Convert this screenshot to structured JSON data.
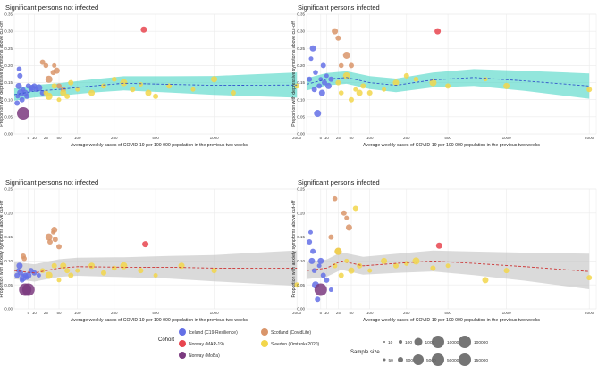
{
  "chart_data": [
    {
      "type": "scatter",
      "title": "Significant persons not infected",
      "xlabel": "Average weekly cases of COVID-19 per 100 000 population in the previous two weeks",
      "ylabel": "Proportion with depressive symptoms above cut-off",
      "xscale": "sqrt",
      "xticks": [
        5,
        10,
        25,
        50,
        100,
        250,
        500,
        1000,
        2000
      ],
      "yticks": [
        0,
        0.05,
        0.1,
        0.15,
        0.2,
        0.25,
        0.3,
        0.35
      ],
      "ytick_labels": [
        "0.00",
        "0.05",
        "0.10",
        "0.15",
        "0.20",
        "0.25",
        "0.30",
        "0.35"
      ],
      "ylim": [
        0,
        0.35
      ],
      "xlim": [
        0,
        2100
      ],
      "grid": true,
      "series": [
        {
          "name": "Iceland (C19-Resilience)",
          "color": "#6470e6",
          "points": [
            [
              0.2,
              0.09
            ],
            [
              0.3,
              0.11
            ],
            [
              0.5,
              0.14
            ],
            [
              0.8,
              0.17
            ],
            [
              0.6,
              0.19
            ],
            [
              1,
              0.12
            ],
            [
              1.5,
              0.1
            ],
            [
              2,
              0.13
            ],
            [
              3,
              0.12
            ],
            [
              4,
              0.11
            ],
            [
              5,
              0.14
            ],
            [
              7,
              0.13
            ],
            [
              8,
              0.135
            ],
            [
              10,
              0.14
            ],
            [
              12,
              0.13
            ],
            [
              15,
              0.135
            ],
            [
              20,
              0.12
            ]
          ]
        },
        {
          "name": "Norway (MAP-19)",
          "color": "#e8454f",
          "points": [
            [
              420,
              0.305
            ]
          ]
        },
        {
          "name": "Norway (MoBa)",
          "color": "#7b3a7f",
          "points": [
            [
              2,
              0.06
            ]
          ]
        },
        {
          "name": "Scotland (CovidLife)",
          "color": "#d9956a",
          "points": [
            [
              20,
              0.21
            ],
            [
              25,
              0.2
            ],
            [
              30,
              0.16
            ],
            [
              38,
              0.18
            ],
            [
              40,
              0.2
            ],
            [
              45,
              0.185
            ],
            [
              50,
              0.14
            ],
            [
              60,
              0.13
            ]
          ]
        },
        {
          "name": "Sweden (Omtanke2020)",
          "color": "#f2d64b",
          "points": [
            [
              25,
              0.12
            ],
            [
              30,
              0.11
            ],
            [
              40,
              0.14
            ],
            [
              50,
              0.1
            ],
            [
              60,
              0.12
            ],
            [
              70,
              0.11
            ],
            [
              80,
              0.15
            ],
            [
              100,
              0.13
            ],
            [
              150,
              0.12
            ],
            [
              200,
              0.14
            ],
            [
              250,
              0.16
            ],
            [
              300,
              0.15
            ],
            [
              350,
              0.13
            ],
            [
              400,
              0.145
            ],
            [
              450,
              0.12
            ],
            [
              500,
              0.11
            ],
            [
              600,
              0.14
            ],
            [
              800,
              0.13
            ],
            [
              1000,
              0.16
            ],
            [
              1200,
              0.12
            ],
            [
              2000,
              0.14
            ]
          ]
        }
      ],
      "fit": [
        [
          0,
          0.115
        ],
        [
          10,
          0.125
        ],
        [
          50,
          0.13
        ],
        [
          150,
          0.14
        ],
        [
          300,
          0.148
        ],
        [
          600,
          0.145
        ],
        [
          1000,
          0.142
        ],
        [
          2000,
          0.143
        ]
      ],
      "band_color": "#49d6c4"
    },
    {
      "type": "scatter",
      "title": "Significant persons infected",
      "xlabel": "Average weekly cases of COVID-19 per 100 000 population in the previous two weeks",
      "ylabel": "Proportion with depressive symptoms above cut-off",
      "xscale": "sqrt",
      "xticks": [
        5,
        10,
        25,
        50,
        100,
        250,
        500,
        1000,
        2000
      ],
      "yticks": [
        0,
        0.05,
        0.1,
        0.15,
        0.2,
        0.25,
        0.3,
        0.35
      ],
      "ytick_labels": [
        "0.00",
        "0.05",
        "0.10",
        "0.15",
        "0.20",
        "0.25",
        "0.30",
        "0.35"
      ],
      "ylim": [
        0,
        0.35
      ],
      "xlim": [
        0,
        2100
      ],
      "grid": true,
      "series": [
        {
          "name": "Iceland (C19-Resilience)",
          "color": "#6470e6",
          "points": [
            [
              0.2,
              0.16
            ],
            [
              0.5,
              0.22
            ],
            [
              1,
              0.25
            ],
            [
              1.5,
              0.13
            ],
            [
              2,
              0.18
            ],
            [
              3,
              0.06
            ],
            [
              4,
              0.14
            ],
            [
              5,
              0.16
            ],
            [
              6,
              0.12
            ],
            [
              7,
              0.2
            ],
            [
              8,
              0.15
            ],
            [
              10,
              0.17
            ],
            [
              12,
              0.14
            ],
            [
              15,
              0.16
            ]
          ]
        },
        {
          "name": "Norway (MAP-19)",
          "color": "#e8454f",
          "points": [
            [
              430,
              0.3
            ]
          ]
        },
        {
          "name": "Scotland (CovidLife)",
          "color": "#d9956a",
          "points": [
            [
              20,
              0.3
            ],
            [
              25,
              0.28
            ],
            [
              30,
              0.2
            ],
            [
              40,
              0.23
            ],
            [
              50,
              0.2
            ]
          ]
        },
        {
          "name": "Sweden (Omtanke2020)",
          "color": "#f2d64b",
          "points": [
            [
              25,
              0.15
            ],
            [
              30,
              0.12
            ],
            [
              40,
              0.17
            ],
            [
              50,
              0.1
            ],
            [
              60,
              0.13
            ],
            [
              70,
              0.12
            ],
            [
              80,
              0.14
            ],
            [
              100,
              0.12
            ],
            [
              150,
              0.13
            ],
            [
              200,
              0.15
            ],
            [
              250,
              0.17
            ],
            [
              300,
              0.16
            ],
            [
              400,
              0.15
            ],
            [
              500,
              0.14
            ],
            [
              800,
              0.16
            ],
            [
              1000,
              0.14
            ],
            [
              2000,
              0.13
            ]
          ]
        }
      ],
      "fit": [
        [
          0,
          0.145
        ],
        [
          10,
          0.16
        ],
        [
          40,
          0.165
        ],
        [
          100,
          0.15
        ],
        [
          200,
          0.142
        ],
        [
          400,
          0.158
        ],
        [
          700,
          0.165
        ],
        [
          1200,
          0.155
        ],
        [
          2000,
          0.14
        ]
      ],
      "band_color": "#49d6c4"
    },
    {
      "type": "scatter",
      "title": "Significant persons not infected",
      "xlabel": "Average weekly cases of COVID-19 per 100 000 population in the previous two weeks",
      "ylabel": "Proportion with anxiety symptoms above cut-off",
      "xscale": "sqrt",
      "xticks": [
        5,
        10,
        25,
        50,
        100,
        250,
        500,
        1000,
        2000
      ],
      "yticks": [
        0,
        0.05,
        0.1,
        0.15,
        0.2,
        0.25
      ],
      "ytick_labels": [
        "0.00",
        "0.05",
        "0.10",
        "0.15",
        "0.20",
        "0.25"
      ],
      "ylim": [
        0,
        0.25
      ],
      "xlim": [
        0,
        2100
      ],
      "grid": true,
      "series": [
        {
          "name": "Iceland (C19-Resilience)",
          "color": "#6470e6",
          "points": [
            [
              0.2,
              0.07
            ],
            [
              0.4,
              0.08
            ],
            [
              0.7,
              0.09
            ],
            [
              1,
              0.075
            ],
            [
              1.5,
              0.06
            ],
            [
              2,
              0.065
            ],
            [
              3,
              0.07
            ],
            [
              4,
              0.065
            ],
            [
              5,
              0.07
            ],
            [
              7,
              0.08
            ],
            [
              10,
              0.075
            ],
            [
              15,
              0.07
            ]
          ]
        },
        {
          "name": "Norway (MAP-19)",
          "color": "#e8454f",
          "points": [
            [
              430,
              0.135
            ]
          ]
        },
        {
          "name": "Norway (MoBa)",
          "color": "#7b3a7f",
          "points": [
            [
              3,
              0.04
            ],
            [
              5,
              0.04
            ]
          ]
        },
        {
          "name": "Scotland (CovidLife)",
          "color": "#d9956a",
          "points": [
            [
              2,
              0.11
            ],
            [
              2.5,
              0.105
            ],
            [
              30,
              0.15
            ],
            [
              32,
              0.14
            ],
            [
              38,
              0.16
            ],
            [
              40,
              0.165
            ],
            [
              42,
              0.145
            ],
            [
              50,
              0.13
            ]
          ]
        },
        {
          "name": "Sweden (Omtanke2020)",
          "color": "#f2d64b",
          "points": [
            [
              20,
              0.08
            ],
            [
              30,
              0.07
            ],
            [
              40,
              0.09
            ],
            [
              50,
              0.06
            ],
            [
              60,
              0.09
            ],
            [
              70,
              0.08
            ],
            [
              80,
              0.07
            ],
            [
              100,
              0.08
            ],
            [
              150,
              0.09
            ],
            [
              200,
              0.075
            ],
            [
              250,
              0.085
            ],
            [
              300,
              0.09
            ],
            [
              400,
              0.08
            ],
            [
              500,
              0.07
            ],
            [
              700,
              0.09
            ],
            [
              1000,
              0.08
            ],
            [
              2000,
              0.05
            ]
          ]
        }
      ],
      "fit": [
        [
          0,
          0.08
        ],
        [
          10,
          0.075
        ],
        [
          50,
          0.085
        ],
        [
          100,
          0.088
        ],
        [
          300,
          0.087
        ],
        [
          600,
          0.087
        ],
        [
          1000,
          0.085
        ],
        [
          2000,
          0.085
        ]
      ],
      "band_color": "#c2c2c2"
    },
    {
      "type": "scatter",
      "title": "Significant persons infected",
      "xlabel": "Average weekly cases of COVID-19 per 100 000 population in the previous two weeks",
      "ylabel": "Proportion with anxiety symptoms above cut-off",
      "xscale": "sqrt",
      "xticks": [
        5,
        10,
        25,
        50,
        100,
        250,
        500,
        1000,
        2000
      ],
      "yticks": [
        0,
        0.05,
        0.1,
        0.15,
        0.2,
        0.25
      ],
      "ytick_labels": [
        "0.00",
        "0.05",
        "0.10",
        "0.15",
        "0.20",
        "0.25"
      ],
      "ylim": [
        0,
        0.25
      ],
      "xlim": [
        0,
        2100
      ],
      "grid": true,
      "series": [
        {
          "name": "Iceland (C19-Resilience)",
          "color": "#6470e6",
          "points": [
            [
              0.2,
              0.14
            ],
            [
              0.4,
              0.16
            ],
            [
              0.7,
              0.1
            ],
            [
              1,
              0.12
            ],
            [
              1.5,
              0.08
            ],
            [
              2,
              0.05
            ],
            [
              3,
              0.02
            ],
            [
              4,
              0.09
            ],
            [
              5,
              0.1
            ],
            [
              7,
              0.07
            ],
            [
              10,
              0.06
            ],
            [
              15,
              0.04
            ]
          ]
        },
        {
          "name": "Norway (MAP-19)",
          "color": "#e8454f",
          "points": [
            [
              440,
              0.132
            ]
          ]
        },
        {
          "name": "Norway (MoBa)",
          "color": "#7b3a7f",
          "points": [
            [
              5,
              0.04
            ]
          ]
        },
        {
          "name": "Scotland (CovidLife)",
          "color": "#d9956a",
          "points": [
            [
              15,
              0.15
            ],
            [
              20,
              0.23
            ],
            [
              25,
              0.12
            ],
            [
              35,
              0.2
            ],
            [
              40,
              0.19
            ],
            [
              45,
              0.17
            ]
          ]
        },
        {
          "name": "Sweden (Omtanke2020)",
          "color": "#f2d64b",
          "points": [
            [
              20,
              0.09
            ],
            [
              25,
              0.12
            ],
            [
              30,
              0.07
            ],
            [
              40,
              0.1
            ],
            [
              50,
              0.08
            ],
            [
              60,
              0.21
            ],
            [
              70,
              0.09
            ],
            [
              100,
              0.08
            ],
            [
              150,
              0.1
            ],
            [
              200,
              0.09
            ],
            [
              250,
              0.095
            ],
            [
              300,
              0.1
            ],
            [
              400,
              0.085
            ],
            [
              500,
              0.09
            ],
            [
              800,
              0.06
            ],
            [
              1000,
              0.08
            ],
            [
              2000,
              0.065
            ]
          ]
        }
      ],
      "fit": [
        [
          0,
          0.08
        ],
        [
          10,
          0.085
        ],
        [
          30,
          0.1
        ],
        [
          80,
          0.09
        ],
        [
          200,
          0.095
        ],
        [
          400,
          0.1
        ],
        [
          700,
          0.095
        ],
        [
          1200,
          0.088
        ],
        [
          2000,
          0.078
        ]
      ],
      "band_color": "#c2c2c2"
    }
  ],
  "legend": {
    "cohort_title": "Cohort",
    "cohorts": [
      {
        "name": "Iceland (C19-Resilience)",
        "color": "#6470e6"
      },
      {
        "name": "Norway (MAP-19)",
        "color": "#e8454f"
      },
      {
        "name": "Norway (MoBa)",
        "color": "#7b3a7f"
      },
      {
        "name": "Scotland (CovidLife)",
        "color": "#d9956a"
      },
      {
        "name": "Sweden (Omtanke2020)",
        "color": "#f2d64b"
      }
    ],
    "size_title": "Sample size",
    "sizes": [
      "10",
      "50",
      "100",
      "500",
      "1000",
      "5000",
      "10000",
      "50000",
      "100000",
      "150000"
    ]
  }
}
